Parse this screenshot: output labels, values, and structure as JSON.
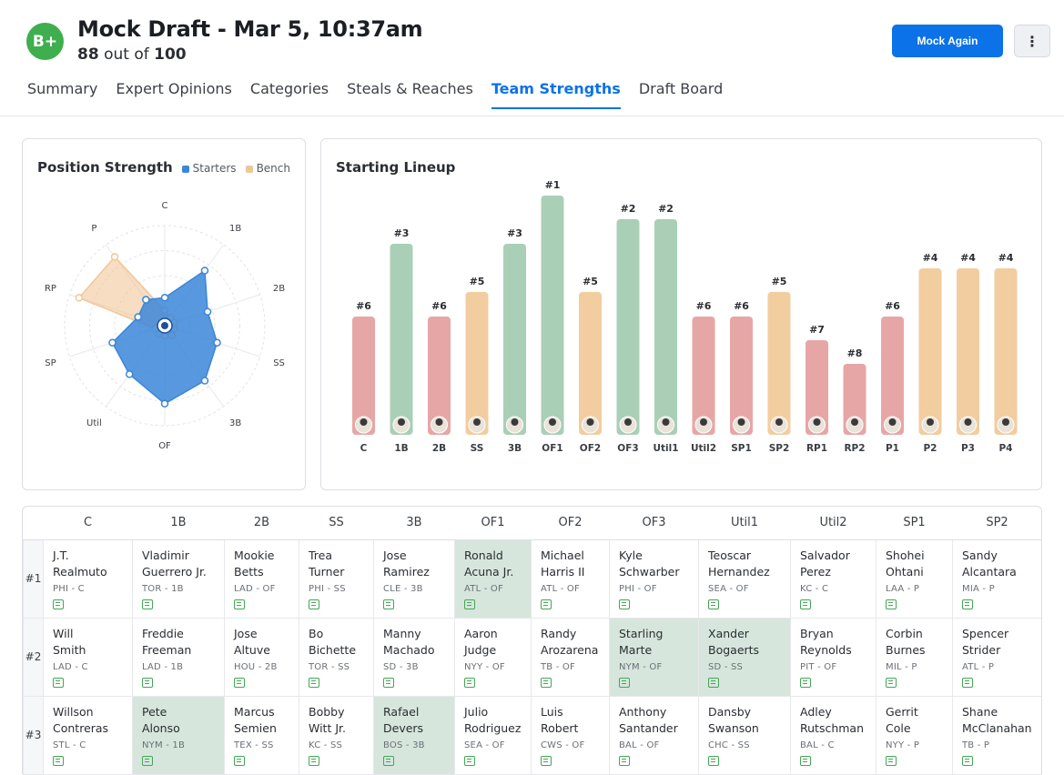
{
  "header": {
    "grade": "B+",
    "title": "Mock Draft - Mar 5, 10:37am",
    "score_value": "88",
    "score_sep": " out of ",
    "score_max": "100",
    "mock_again_label": "Mock Again",
    "more_label": "⋮"
  },
  "tabs": [
    {
      "label": "Summary",
      "active": false
    },
    {
      "label": "Expert Opinions",
      "active": false
    },
    {
      "label": "Categories",
      "active": false
    },
    {
      "label": "Steals & Reaches",
      "active": false
    },
    {
      "label": "Team Strengths",
      "active": true
    },
    {
      "label": "Draft Board",
      "active": false
    }
  ],
  "position_strength": {
    "title": "Position Strength",
    "legend": {
      "starters": "Starters",
      "bench": "Bench"
    },
    "colors": {
      "starters": "#3b86d8",
      "bench": "#f1c697"
    },
    "chart_data": {
      "type": "radar",
      "axes": [
        "C",
        "1B",
        "2B",
        "SS",
        "3B",
        "OF",
        "Util",
        "SP",
        "RP",
        "P"
      ],
      "series": [
        {
          "name": "Starters",
          "values": [
            0.28,
            0.68,
            0.45,
            0.55,
            0.68,
            0.78,
            0.6,
            0.55,
            0.28,
            0.32
          ]
        },
        {
          "name": "Bench",
          "values": [
            0.15,
            0.1,
            0.1,
            0.1,
            0.12,
            0.1,
            0.1,
            0.1,
            0.9,
            0.85
          ]
        }
      ],
      "max": 1
    }
  },
  "starting_lineup": {
    "title": "Starting Lineup",
    "colors": {
      "green": "#a9cfb6",
      "orange": "#f2cda0",
      "red": "#e7a6a6"
    },
    "chart_data": {
      "type": "bar",
      "categories": [
        "C",
        "1B",
        "2B",
        "SS",
        "3B",
        "OF1",
        "OF2",
        "OF3",
        "Util1",
        "Util2",
        "SP1",
        "SP2",
        "RP1",
        "RP2",
        "P1",
        "P2",
        "P3",
        "P4"
      ],
      "ranks": [
        "#6",
        "#3",
        "#6",
        "#5",
        "#3",
        "#1",
        "#5",
        "#2",
        "#2",
        "#6",
        "#6",
        "#5",
        "#7",
        "#8",
        "#6",
        "#4",
        "#4",
        "#4"
      ],
      "values": [
        130,
        210,
        130,
        157,
        210,
        263,
        157,
        237,
        237,
        130,
        130,
        157,
        104,
        78,
        130,
        183,
        183,
        183
      ],
      "tiers": [
        "red",
        "green",
        "red",
        "orange",
        "green",
        "green",
        "orange",
        "green",
        "green",
        "red",
        "red",
        "orange",
        "red",
        "red",
        "red",
        "orange",
        "orange",
        "orange"
      ]
    }
  },
  "board": {
    "columns": [
      "C",
      "1B",
      "2B",
      "SS",
      "3B",
      "OF1",
      "OF2",
      "OF3",
      "Util1",
      "Util2",
      "SP1",
      "SP2"
    ],
    "rows": [
      {
        "rank": "#1",
        "cells": [
          {
            "name1": "J.T.",
            "name2": "Realmuto",
            "meta": "PHI - C",
            "hl": false
          },
          {
            "name1": "Vladimir",
            "name2": "Guerrero Jr.",
            "meta": "TOR - 1B",
            "hl": false
          },
          {
            "name1": "Mookie",
            "name2": "Betts",
            "meta": "LAD - OF",
            "hl": false
          },
          {
            "name1": "Trea",
            "name2": "Turner",
            "meta": "PHI - SS",
            "hl": false
          },
          {
            "name1": "Jose",
            "name2": "Ramirez",
            "meta": "CLE - 3B",
            "hl": false
          },
          {
            "name1": "Ronald",
            "name2": "Acuna Jr.",
            "meta": "ATL - OF",
            "hl": true
          },
          {
            "name1": "Michael",
            "name2": "Harris II",
            "meta": "ATL - OF",
            "hl": false
          },
          {
            "name1": "Kyle",
            "name2": "Schwarber",
            "meta": "PHI - OF",
            "hl": false
          },
          {
            "name1": "Teoscar",
            "name2": "Hernandez",
            "meta": "SEA - OF",
            "hl": false
          },
          {
            "name1": "Salvador",
            "name2": "Perez",
            "meta": "KC - C",
            "hl": false
          },
          {
            "name1": "Shohei",
            "name2": "Ohtani",
            "meta": "LAA - P",
            "hl": false
          },
          {
            "name1": "Sandy",
            "name2": "Alcantara",
            "meta": "MIA - P",
            "hl": false
          }
        ]
      },
      {
        "rank": "#2",
        "cells": [
          {
            "name1": "Will",
            "name2": "Smith",
            "meta": "LAD - C",
            "hl": false
          },
          {
            "name1": "Freddie",
            "name2": "Freeman",
            "meta": "LAD - 1B",
            "hl": false
          },
          {
            "name1": "Jose",
            "name2": "Altuve",
            "meta": "HOU - 2B",
            "hl": false
          },
          {
            "name1": "Bo",
            "name2": "Bichette",
            "meta": "TOR - SS",
            "hl": false
          },
          {
            "name1": "Manny",
            "name2": "Machado",
            "meta": "SD - 3B",
            "hl": false
          },
          {
            "name1": "Aaron",
            "name2": "Judge",
            "meta": "NYY - OF",
            "hl": false
          },
          {
            "name1": "Randy",
            "name2": "Arozarena",
            "meta": "TB - OF",
            "hl": false
          },
          {
            "name1": "Starling",
            "name2": "Marte",
            "meta": "NYM - OF",
            "hl": true
          },
          {
            "name1": "Xander",
            "name2": "Bogaerts",
            "meta": "SD - SS",
            "hl": true
          },
          {
            "name1": "Bryan",
            "name2": "Reynolds",
            "meta": "PIT - OF",
            "hl": false
          },
          {
            "name1": "Corbin",
            "name2": "Burnes",
            "meta": "MIL - P",
            "hl": false
          },
          {
            "name1": "Spencer",
            "name2": "Strider",
            "meta": "ATL - P",
            "hl": false
          }
        ]
      },
      {
        "rank": "#3",
        "cells": [
          {
            "name1": "Willson",
            "name2": "Contreras",
            "meta": "STL - C",
            "hl": false
          },
          {
            "name1": "Pete",
            "name2": "Alonso",
            "meta": "NYM - 1B",
            "hl": true
          },
          {
            "name1": "Marcus",
            "name2": "Semien",
            "meta": "TEX - SS",
            "hl": false
          },
          {
            "name1": "Bobby",
            "name2": "Witt Jr.",
            "meta": "KC - SS",
            "hl": false
          },
          {
            "name1": "Rafael",
            "name2": "Devers",
            "meta": "BOS - 3B",
            "hl": true
          },
          {
            "name1": "Julio",
            "name2": "Rodriguez",
            "meta": "SEA - OF",
            "hl": false
          },
          {
            "name1": "Luis",
            "name2": "Robert",
            "meta": "CWS - OF",
            "hl": false
          },
          {
            "name1": "Anthony",
            "name2": "Santander",
            "meta": "BAL - OF",
            "hl": false
          },
          {
            "name1": "Dansby",
            "name2": "Swanson",
            "meta": "CHC - SS",
            "hl": false
          },
          {
            "name1": "Adley",
            "name2": "Rutschman",
            "meta": "BAL - C",
            "hl": false
          },
          {
            "name1": "Gerrit",
            "name2": "Cole",
            "meta": "NYY - P",
            "hl": false
          },
          {
            "name1": "Shane",
            "name2": "McClanahan",
            "meta": "TB - P",
            "hl": false
          }
        ]
      }
    ]
  }
}
